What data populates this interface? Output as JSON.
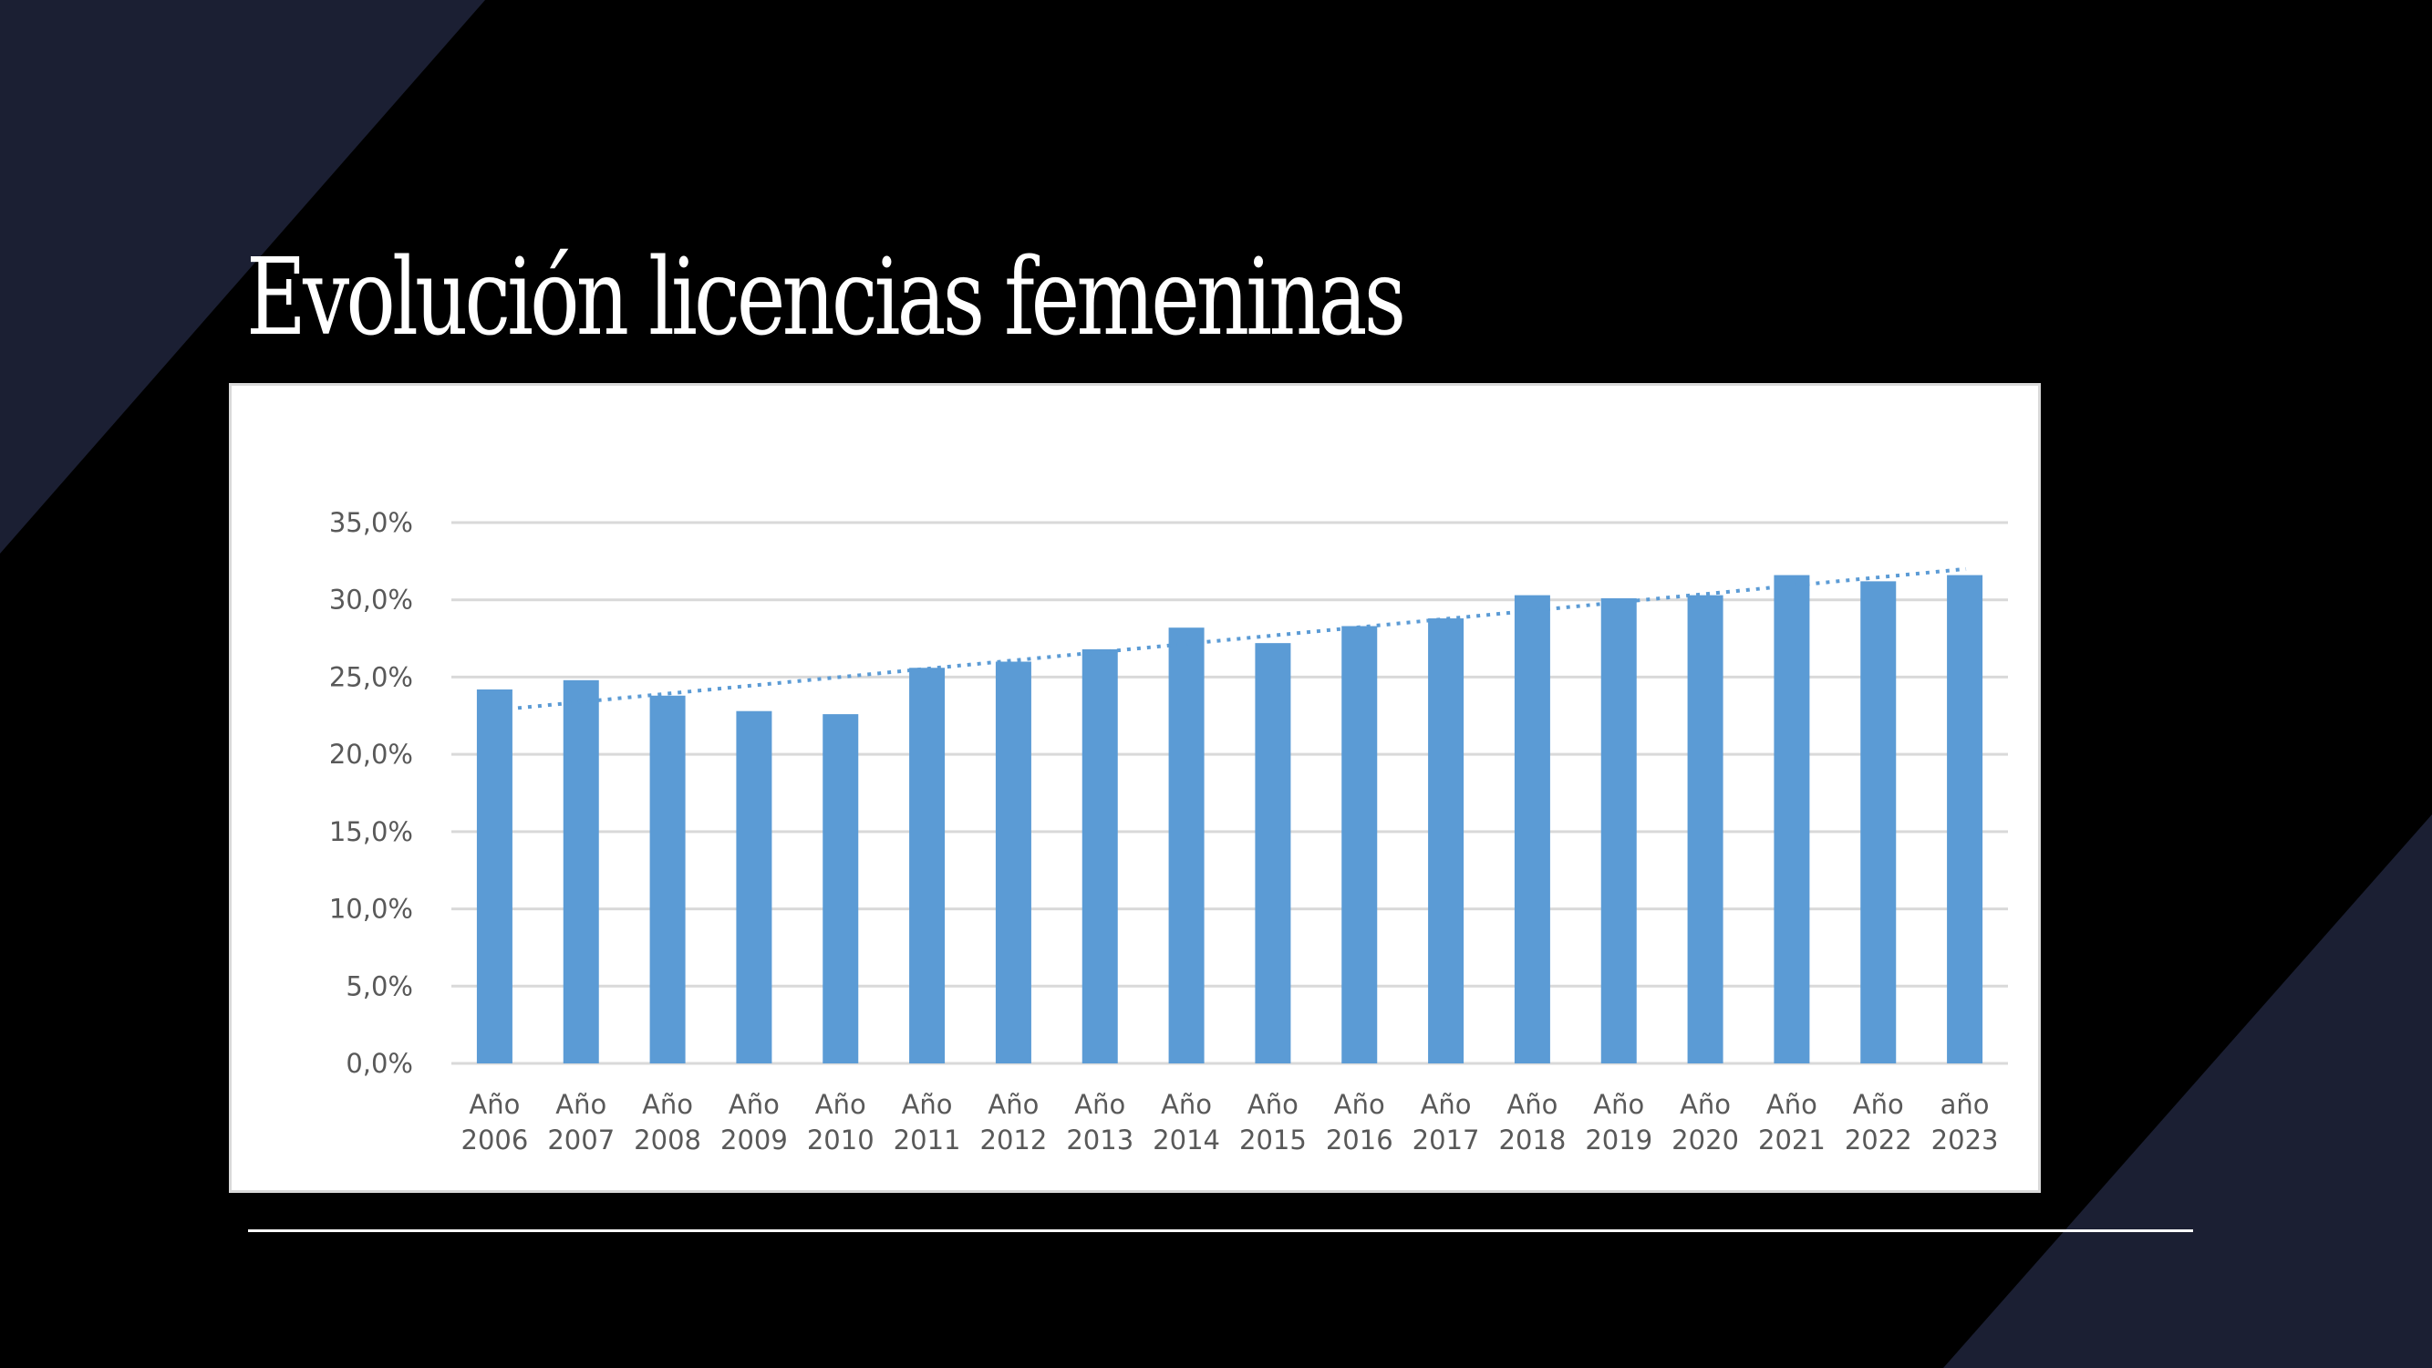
{
  "slide": {
    "title": "Evolución licencias femeninas",
    "colors": {
      "background": "#000000",
      "accent_shape": "#1b1f33",
      "title": "#ffffff",
      "divider": "#ffffff",
      "chart_background": "#ffffff",
      "chart_border": "#d9d9d9",
      "gridline": "#d9d9d9",
      "bar": "#5b9bd5",
      "trendline": "#5b9bd5",
      "tick_text": "#595959"
    }
  },
  "chart_data": {
    "type": "bar",
    "title": "",
    "xlabel": "",
    "ylabel": "",
    "categories": [
      "Año 2006",
      "Año 2007",
      "Año 2008",
      "Año 2009",
      "Año 2010",
      "Año 2011",
      "Año 2012",
      "Año 2013",
      "Año 2014",
      "Año 2015",
      "Año 2016",
      "Año 2017",
      "Año 2018",
      "Año 2019",
      "Año 2020",
      "Año 2021",
      "Año 2022",
      "año 2023"
    ],
    "category_lines": [
      [
        "Año",
        "2006"
      ],
      [
        "Año",
        "2007"
      ],
      [
        "Año",
        "2008"
      ],
      [
        "Año",
        "2009"
      ],
      [
        "Año",
        "2010"
      ],
      [
        "Año",
        "2011"
      ],
      [
        "Año",
        "2012"
      ],
      [
        "Año",
        "2013"
      ],
      [
        "Año",
        "2014"
      ],
      [
        "Año",
        "2015"
      ],
      [
        "Año",
        "2016"
      ],
      [
        "Año",
        "2017"
      ],
      [
        "Año",
        "2018"
      ],
      [
        "Año",
        "2019"
      ],
      [
        "Año",
        "2020"
      ],
      [
        "Año",
        "2021"
      ],
      [
        "Año",
        "2022"
      ],
      [
        "año",
        "2023"
      ]
    ],
    "values": [
      24.2,
      24.8,
      23.8,
      22.8,
      22.6,
      25.6,
      26.0,
      26.8,
      28.2,
      27.2,
      28.3,
      28.8,
      30.3,
      30.1,
      30.3,
      31.6,
      31.2,
      31.6
    ],
    "value_unit": "%",
    "ylim": [
      0,
      35
    ],
    "yticks": [
      0,
      5,
      10,
      15,
      20,
      25,
      30,
      35
    ],
    "ytick_labels": [
      "0,0%",
      "5,0%",
      "10,0%",
      "15,0%",
      "20,0%",
      "25,0%",
      "30,0%",
      "35,0%"
    ],
    "grid": true,
    "legend": null,
    "trendline": {
      "type": "linear",
      "style": "dotted",
      "start": 23.0,
      "end": 32.0
    }
  }
}
